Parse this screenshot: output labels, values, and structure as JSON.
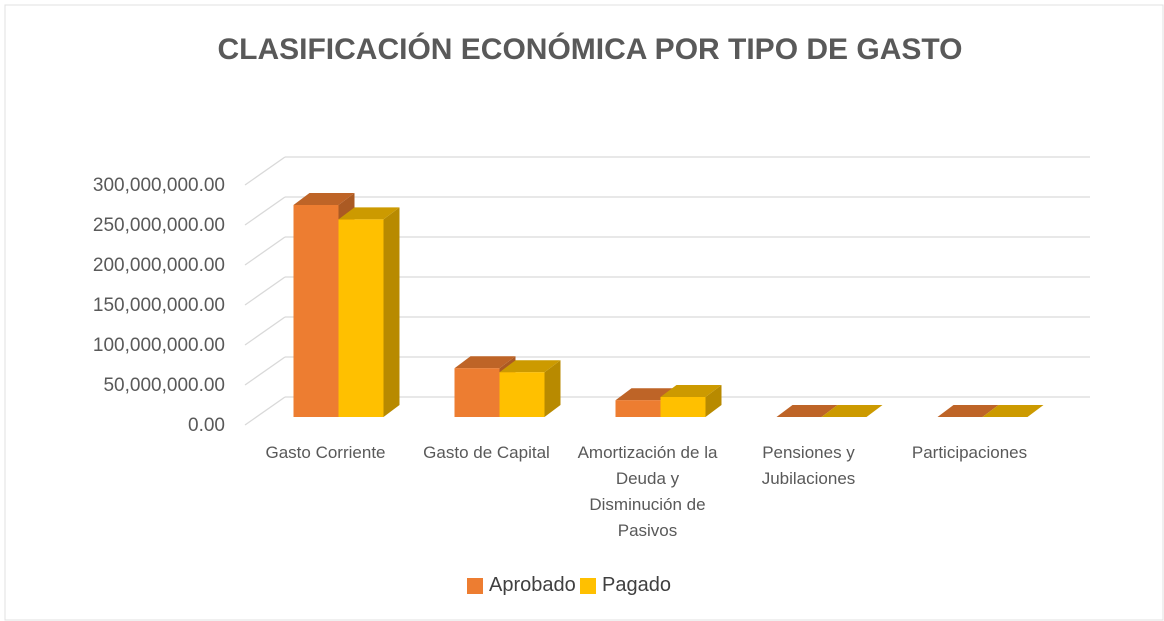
{
  "chart_data": {
    "type": "bar3d",
    "title": "CLASIFICACIÓN ECONÓMICA POR TIPO DE GASTO",
    "categories": [
      "Gasto Corriente",
      "Gasto de Capital",
      "Amortización de la Deuda y Disminución de Pasivos",
      "Pensiones y Jubilaciones",
      "Participaciones"
    ],
    "series": [
      {
        "name": "Aprobado",
        "color": "#ED7D31",
        "values": [
          265000000,
          61000000,
          21000000,
          0,
          0
        ]
      },
      {
        "name": "Pagado",
        "color": "#FFC000",
        "values": [
          247000000,
          56000000,
          25000000,
          0,
          0
        ]
      }
    ],
    "ylim": [
      0,
      300000000
    ],
    "yticks": [
      {
        "value": 0,
        "label": "0.00"
      },
      {
        "value": 50000000,
        "label": "50,000,000.00"
      },
      {
        "value": 100000000,
        "label": "100,000,000.00"
      },
      {
        "value": 150000000,
        "label": "150,000,000.00"
      },
      {
        "value": 200000000,
        "label": "200,000,000.00"
      },
      {
        "value": 250000000,
        "label": "250,000,000.00"
      },
      {
        "value": 300000000,
        "label": "300,000,000.00"
      }
    ],
    "grid": true,
    "legend": "bottom"
  }
}
